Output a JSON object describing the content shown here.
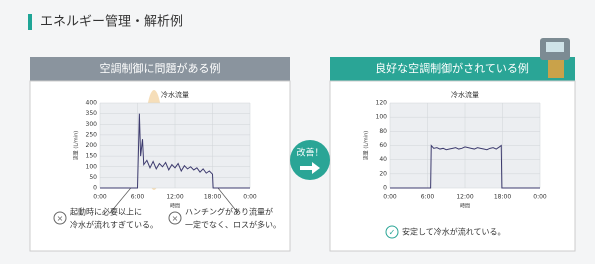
{
  "header": {
    "title": "エネルギー管理・解析例"
  },
  "badge": "改善！",
  "panels": [
    {
      "title": "空調制御に問題がある例"
    },
    {
      "title": "良好な空調制御がされている例"
    }
  ],
  "chart_data": [
    {
      "type": "line",
      "title": "冷水流量",
      "y_label": "流量 (L/min)",
      "x_label": "時間",
      "color": "#3d3b6e",
      "grid": true,
      "x": [
        0,
        6,
        6.3,
        6.5,
        6.8,
        7,
        7.5,
        8,
        8.5,
        9,
        9.5,
        10,
        10.5,
        11,
        11.5,
        12,
        12.5,
        13,
        13.5,
        14,
        14.5,
        15,
        15.5,
        16,
        16.5,
        17,
        17.5,
        18,
        18.1,
        24
      ],
      "values": [
        0,
        0,
        350,
        150,
        230,
        110,
        130,
        95,
        125,
        90,
        115,
        100,
        120,
        85,
        110,
        95,
        115,
        80,
        105,
        90,
        100,
        85,
        95,
        75,
        90,
        70,
        80,
        65,
        0,
        0
      ],
      "xlim": [
        0,
        24
      ],
      "xticks": [
        {
          "value": 0,
          "label": "0:00"
        },
        {
          "value": 6,
          "label": "6:00"
        },
        {
          "value": 12,
          "label": "12:00"
        },
        {
          "value": 18,
          "label": "18:00"
        },
        {
          "value": 24,
          "label": "0:00"
        }
      ],
      "ylim": [
        0,
        400
      ],
      "yticks": [
        0,
        50,
        100,
        150,
        200,
        250,
        300,
        350,
        400
      ],
      "annotations": [
        [
          "起動時に必要以上に",
          "冷水が流れすぎている。"
        ],
        [
          "ハンチングがあり流量が",
          "一定でなく、ロスが多い。"
        ]
      ]
    },
    {
      "type": "line",
      "title": "冷水流量",
      "y_label": "流量 (L/min)",
      "x_label": "時間",
      "color": "#3d3b6e",
      "grid": true,
      "x": [
        0,
        6.5,
        6.6,
        7,
        7.5,
        8,
        8.5,
        9,
        9.5,
        10,
        10.5,
        11,
        11.5,
        12,
        12.5,
        13,
        13.5,
        14,
        14.5,
        15,
        15.5,
        16,
        16.5,
        17,
        17.5,
        17.8,
        17.9,
        24
      ],
      "values": [
        0,
        0,
        60,
        56,
        57,
        55,
        56,
        54,
        55,
        56,
        57,
        55,
        56,
        58,
        57,
        56,
        55,
        57,
        56,
        55,
        54,
        56,
        57,
        55,
        58,
        60,
        0,
        0
      ],
      "xlim": [
        0,
        24
      ],
      "xticks": [
        {
          "value": 0,
          "label": "0:00"
        },
        {
          "value": 6,
          "label": "6:00"
        },
        {
          "value": 12,
          "label": "12:00"
        },
        {
          "value": 18,
          "label": "18:00"
        },
        {
          "value": 24,
          "label": "0:00"
        }
      ],
      "ylim": [
        0,
        120
      ],
      "yticks": [
        0,
        20,
        40,
        60,
        80,
        100,
        120
      ],
      "annotations": [
        [
          "安定して冷水が流れている。"
        ]
      ]
    }
  ]
}
